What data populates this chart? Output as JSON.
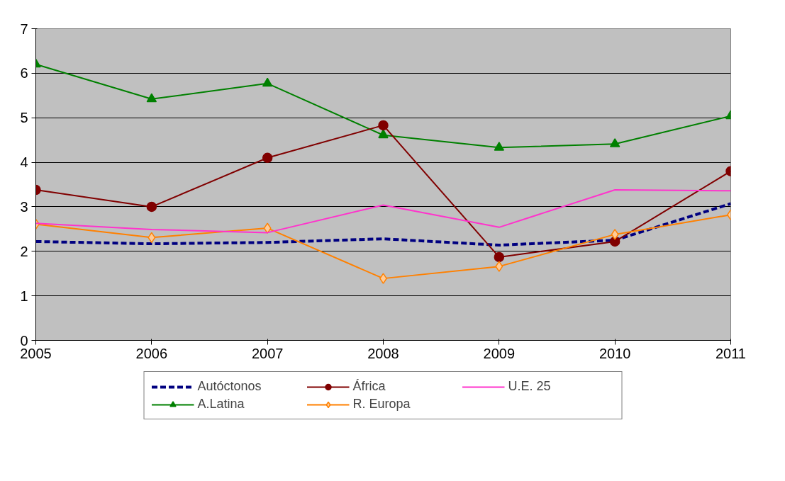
{
  "chart_data": {
    "type": "line",
    "x": [
      2005,
      2006,
      2007,
      2008,
      2009,
      2010,
      2011
    ],
    "xlim": [
      2005,
      2011
    ],
    "xticks": [
      2005,
      2006,
      2007,
      2008,
      2009,
      2010,
      2011
    ],
    "ylim": [
      0,
      7
    ],
    "yticks": [
      0,
      1,
      2,
      3,
      4,
      5,
      6,
      7
    ],
    "grid": "y",
    "legend": "bottom",
    "series": [
      {
        "name": "Autóctonos",
        "color": "#000080",
        "line_style": "dashed",
        "marker": "none",
        "values": [
          2.22,
          2.17,
          2.2,
          2.28,
          2.14,
          2.25,
          3.07
        ]
      },
      {
        "name": "A.Latina",
        "color": "#008000",
        "line_style": "solid",
        "marker": "triangle",
        "values": [
          6.2,
          5.42,
          5.77,
          4.61,
          4.33,
          4.41,
          5.04
        ]
      },
      {
        "name": "África",
        "color": "#800000",
        "line_style": "solid",
        "marker": "circle",
        "values": [
          3.38,
          3.0,
          4.1,
          4.83,
          1.87,
          2.22,
          3.8
        ]
      },
      {
        "name": "R. Europa",
        "color": "#ff8000",
        "line_style": "solid",
        "marker": "diamond",
        "values": [
          2.61,
          2.31,
          2.52,
          1.39,
          1.66,
          2.38,
          2.82
        ]
      },
      {
        "name": "U.E. 25",
        "color": "#ff33cc",
        "line_style": "solid",
        "marker": "none",
        "values": [
          2.63,
          2.49,
          2.42,
          3.04,
          2.54,
          3.38,
          3.36
        ]
      }
    ]
  }
}
